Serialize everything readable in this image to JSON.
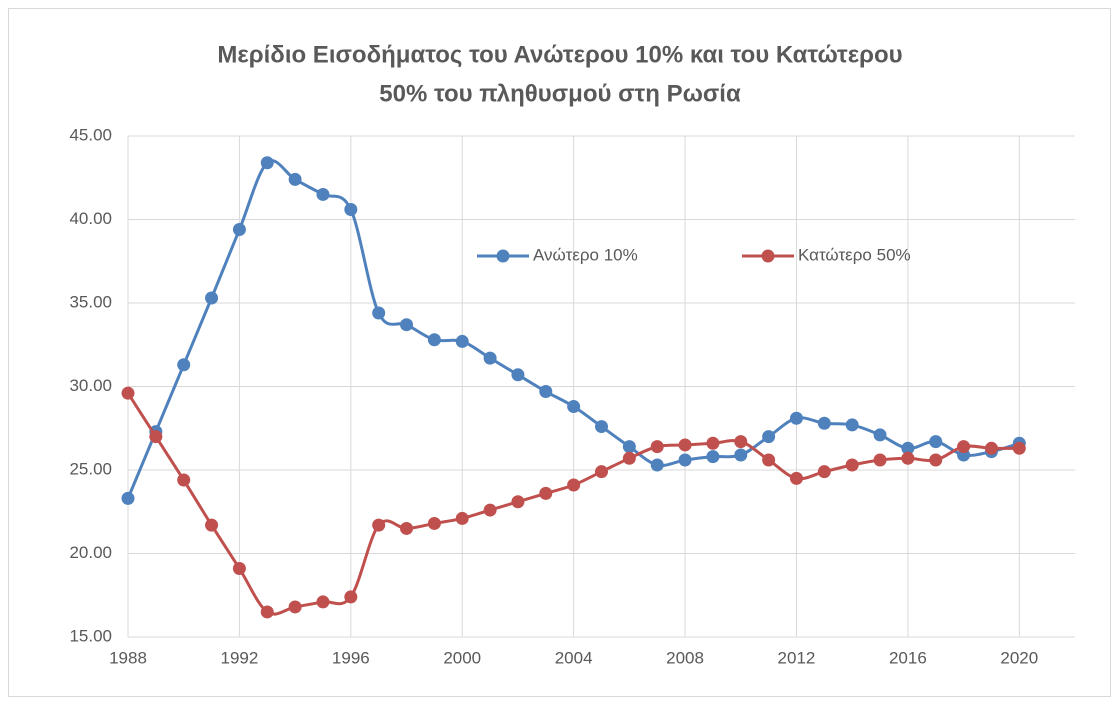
{
  "chart_data": {
    "type": "line",
    "title": [
      "Μερίδιο Εισοδήματος του Ανώτερου 10% και του  Κατώτερου",
      "50% του πληθυσμού στη Ρωσία"
    ],
    "x": [
      1988,
      1989,
      1990,
      1991,
      1992,
      1993,
      1994,
      1995,
      1996,
      1997,
      1998,
      1999,
      2000,
      2001,
      2002,
      2003,
      2004,
      2005,
      2006,
      2007,
      2008,
      2009,
      2010,
      2011,
      2012,
      2013,
      2014,
      2015,
      2016,
      2017,
      2018,
      2019,
      2020
    ],
    "series": [
      {
        "name": "Ανώτερο 10%",
        "color": "#4f81bd",
        "values": [
          23.3,
          27.3,
          31.3,
          35.3,
          39.4,
          43.4,
          42.4,
          41.5,
          40.6,
          34.4,
          33.7,
          32.8,
          32.7,
          31.7,
          30.7,
          29.7,
          28.8,
          27.6,
          26.4,
          25.3,
          25.6,
          25.8,
          25.9,
          27.0,
          28.1,
          27.8,
          27.7,
          27.1,
          26.3,
          26.7,
          25.9,
          26.1,
          26.6
        ]
      },
      {
        "name": "Κατώτερο 50%",
        "color": "#c0504d",
        "values": [
          29.6,
          27.0,
          24.4,
          21.7,
          19.1,
          16.5,
          16.8,
          17.1,
          17.4,
          21.7,
          21.5,
          21.8,
          22.1,
          22.6,
          23.1,
          23.6,
          24.1,
          24.9,
          25.7,
          26.4,
          26.5,
          26.6,
          26.7,
          25.6,
          24.5,
          24.9,
          25.3,
          25.6,
          25.7,
          25.6,
          26.4,
          26.3,
          26.3
        ]
      }
    ],
    "xlim": [
      1988,
      2022
    ],
    "xticks": [
      1988,
      1992,
      1996,
      2000,
      2004,
      2008,
      2012,
      2016,
      2020
    ],
    "ylim": [
      15,
      45
    ],
    "yticks": [
      {
        "value": 15,
        "label": "15.00"
      },
      {
        "value": 20,
        "label": "20.00"
      },
      {
        "value": 25,
        "label": "25.00"
      },
      {
        "value": 30,
        "label": "30.00"
      },
      {
        "value": 35,
        "label": "35.00"
      },
      {
        "value": 40,
        "label": "40.00"
      },
      {
        "value": 45,
        "label": "45.00"
      }
    ],
    "grid": true,
    "smooth": true
  }
}
